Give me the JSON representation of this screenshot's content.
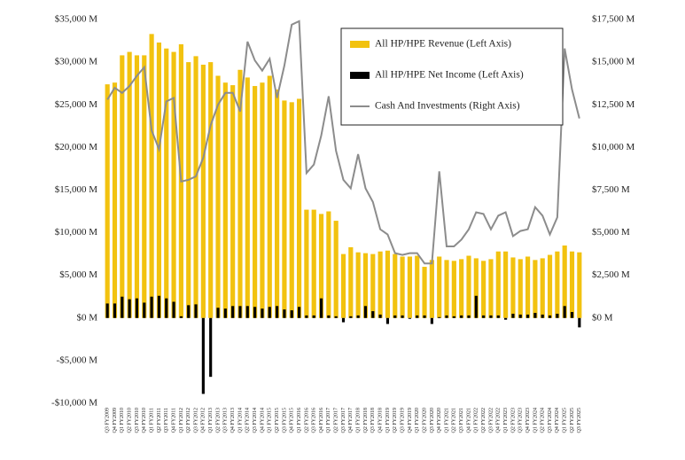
{
  "chart_data": {
    "type": "bar_line",
    "categories": [
      "Q3 FY2009",
      "Q4 FY2009",
      "Q1 FY2010",
      "Q2 FY2010",
      "Q3 FY2010",
      "Q4 FY2010",
      "Q1 FY2011",
      "Q2 FY2011",
      "Q3 FY2011",
      "Q4 FY2011",
      "Q1 FY2012",
      "Q2 FY2012",
      "Q3 FY2012",
      "Q4 FY2012",
      "Q1 FY2013",
      "Q2 FY2013",
      "Q3 FY2013",
      "Q4 FY2013",
      "Q1 FY2014",
      "Q2 FY2014",
      "Q3 FY2014",
      "Q4 FY2014",
      "Q1 FY2015",
      "Q2 FY2015",
      "Q3 FY2015",
      "Q4 FY2015",
      "Q1 FY2016",
      "Q2 FY2016",
      "Q3 FY2016",
      "Q4 FY2016",
      "Q1 FY2017",
      "Q2 FY2017",
      "Q3 FY2017",
      "Q4 FY2017",
      "Q1 FY2018",
      "Q2 FY2018",
      "Q3 FY2018",
      "Q4 FY2018",
      "Q1 FY2019",
      "Q2 FY2019",
      "Q3 FY2019",
      "Q4 FY2019",
      "Q1 FY2020",
      "Q2 FY2020",
      "Q3 FY2020",
      "Q4 FY2020",
      "Q1 FY2021",
      "Q2 FY2021",
      "Q3 FY2021",
      "Q4 FY2021",
      "Q1 FY2022",
      "Q2 FY2022",
      "Q3 FY2022",
      "Q4 FY2022",
      "Q1 FY2023",
      "Q2 FY2023",
      "Q3 FY2023",
      "Q4 FY2023",
      "Q1 FY2024",
      "Q2 FY2024",
      "Q3 FY2024",
      "Q4 FY2024",
      "Q1 FY2025",
      "Q2 FY2025",
      "Q3 FY2025"
    ],
    "series": [
      {
        "name": "All HP/HPE Revenue (Left Axis)",
        "color": "#f2c20f",
        "kind": "bar",
        "values": [
          27400,
          27600,
          30800,
          31200,
          30800,
          30800,
          33300,
          32300,
          31600,
          31200,
          32100,
          30000,
          30700,
          29700,
          30000,
          28400,
          27600,
          27300,
          29100,
          28200,
          27200,
          27600,
          28400,
          26800,
          25500,
          25300,
          25700,
          12700,
          12700,
          12200,
          12500,
          11400,
          7500,
          8300,
          7700,
          7600,
          7500,
          7800,
          7900,
          7500,
          7200,
          7200,
          7300,
          6000,
          6800,
          7200,
          6800,
          6700,
          6900,
          7300,
          7000,
          6700,
          6900,
          7800,
          7800,
          7100,
          6900,
          7200,
          6800,
          7000,
          7400,
          7800,
          8500,
          7800,
          7700
        ]
      },
      {
        "name": "All HP/HPE Net Income (Left Axis)",
        "color": "#000000",
        "kind": "bar",
        "values": [
          1700,
          1700,
          2500,
          2200,
          2300,
          1800,
          2500,
          2600,
          2300,
          1900,
          200,
          1500,
          1600,
          -8900,
          -6900,
          1200,
          1100,
          1400,
          1400,
          1400,
          1300,
          1100,
          1300,
          1400,
          1000,
          900,
          1300,
          300,
          300,
          2300,
          300,
          200,
          -500,
          200,
          300,
          1400,
          800,
          400,
          -700,
          300,
          300,
          -100,
          300,
          300,
          -700,
          100,
          300,
          200,
          300,
          300,
          2600,
          300,
          300,
          300,
          -200,
          500,
          400,
          400,
          600,
          400,
          300,
          500,
          1400,
          700,
          -1100
        ]
      },
      {
        "name": "Cash And Investments (Right Axis)",
        "color": "#8c8c8c",
        "kind": "line",
        "axis": "y2",
        "values": [
          12800,
          13500,
          13200,
          13600,
          14200,
          14700,
          11000,
          9900,
          12700,
          12900,
          8000,
          8100,
          8300,
          9400,
          11300,
          12500,
          13200,
          13200,
          12100,
          16200,
          15100,
          14500,
          15200,
          12900,
          14800,
          17200,
          17400,
          8500,
          9000,
          10700,
          13000,
          9800,
          8100,
          7600,
          9600,
          7600,
          6800,
          5200,
          4900,
          3800,
          3700,
          3800,
          3800,
          3200,
          3200,
          8600,
          4200,
          4200,
          4600,
          5200,
          6200,
          6100,
          5200,
          6000,
          6200,
          4800,
          5100,
          5200,
          6500,
          6000,
          4900,
          5900,
          15800,
          13400,
          11700
        ]
      }
    ],
    "ylim": [
      -10000,
      35000
    ],
    "yticks": [
      {
        "value": -10000,
        "label": "-$10,000 M"
      },
      {
        "value": -5000,
        "label": "-$5,000 M"
      },
      {
        "value": 0,
        "label": "$0 M"
      },
      {
        "value": 5000,
        "label": "$5,000 M"
      },
      {
        "value": 10000,
        "label": "$10,000 M"
      },
      {
        "value": 15000,
        "label": "$15,000 M"
      },
      {
        "value": 20000,
        "label": "$20,000 M"
      },
      {
        "value": 25000,
        "label": "$25,000 M"
      },
      {
        "value": 30000,
        "label": "$30,000 M"
      },
      {
        "value": 35000,
        "label": "$35,000 M"
      }
    ],
    "y2lim": [
      -5000,
      17500
    ],
    "y2ticks": [
      {
        "value": 0,
        "label": "$0 M"
      },
      {
        "value": 2500,
        "label": "$2,500 M"
      },
      {
        "value": 5000,
        "label": "$5,000 M"
      },
      {
        "value": 7500,
        "label": "$7,500 M"
      },
      {
        "value": 10000,
        "label": "$10,000 M"
      },
      {
        "value": 12500,
        "label": "$12,500 M"
      },
      {
        "value": 15000,
        "label": "$15,000 M"
      },
      {
        "value": 17500,
        "label": "$17,500 M"
      }
    ],
    "grid": false,
    "legend": "upper right"
  }
}
